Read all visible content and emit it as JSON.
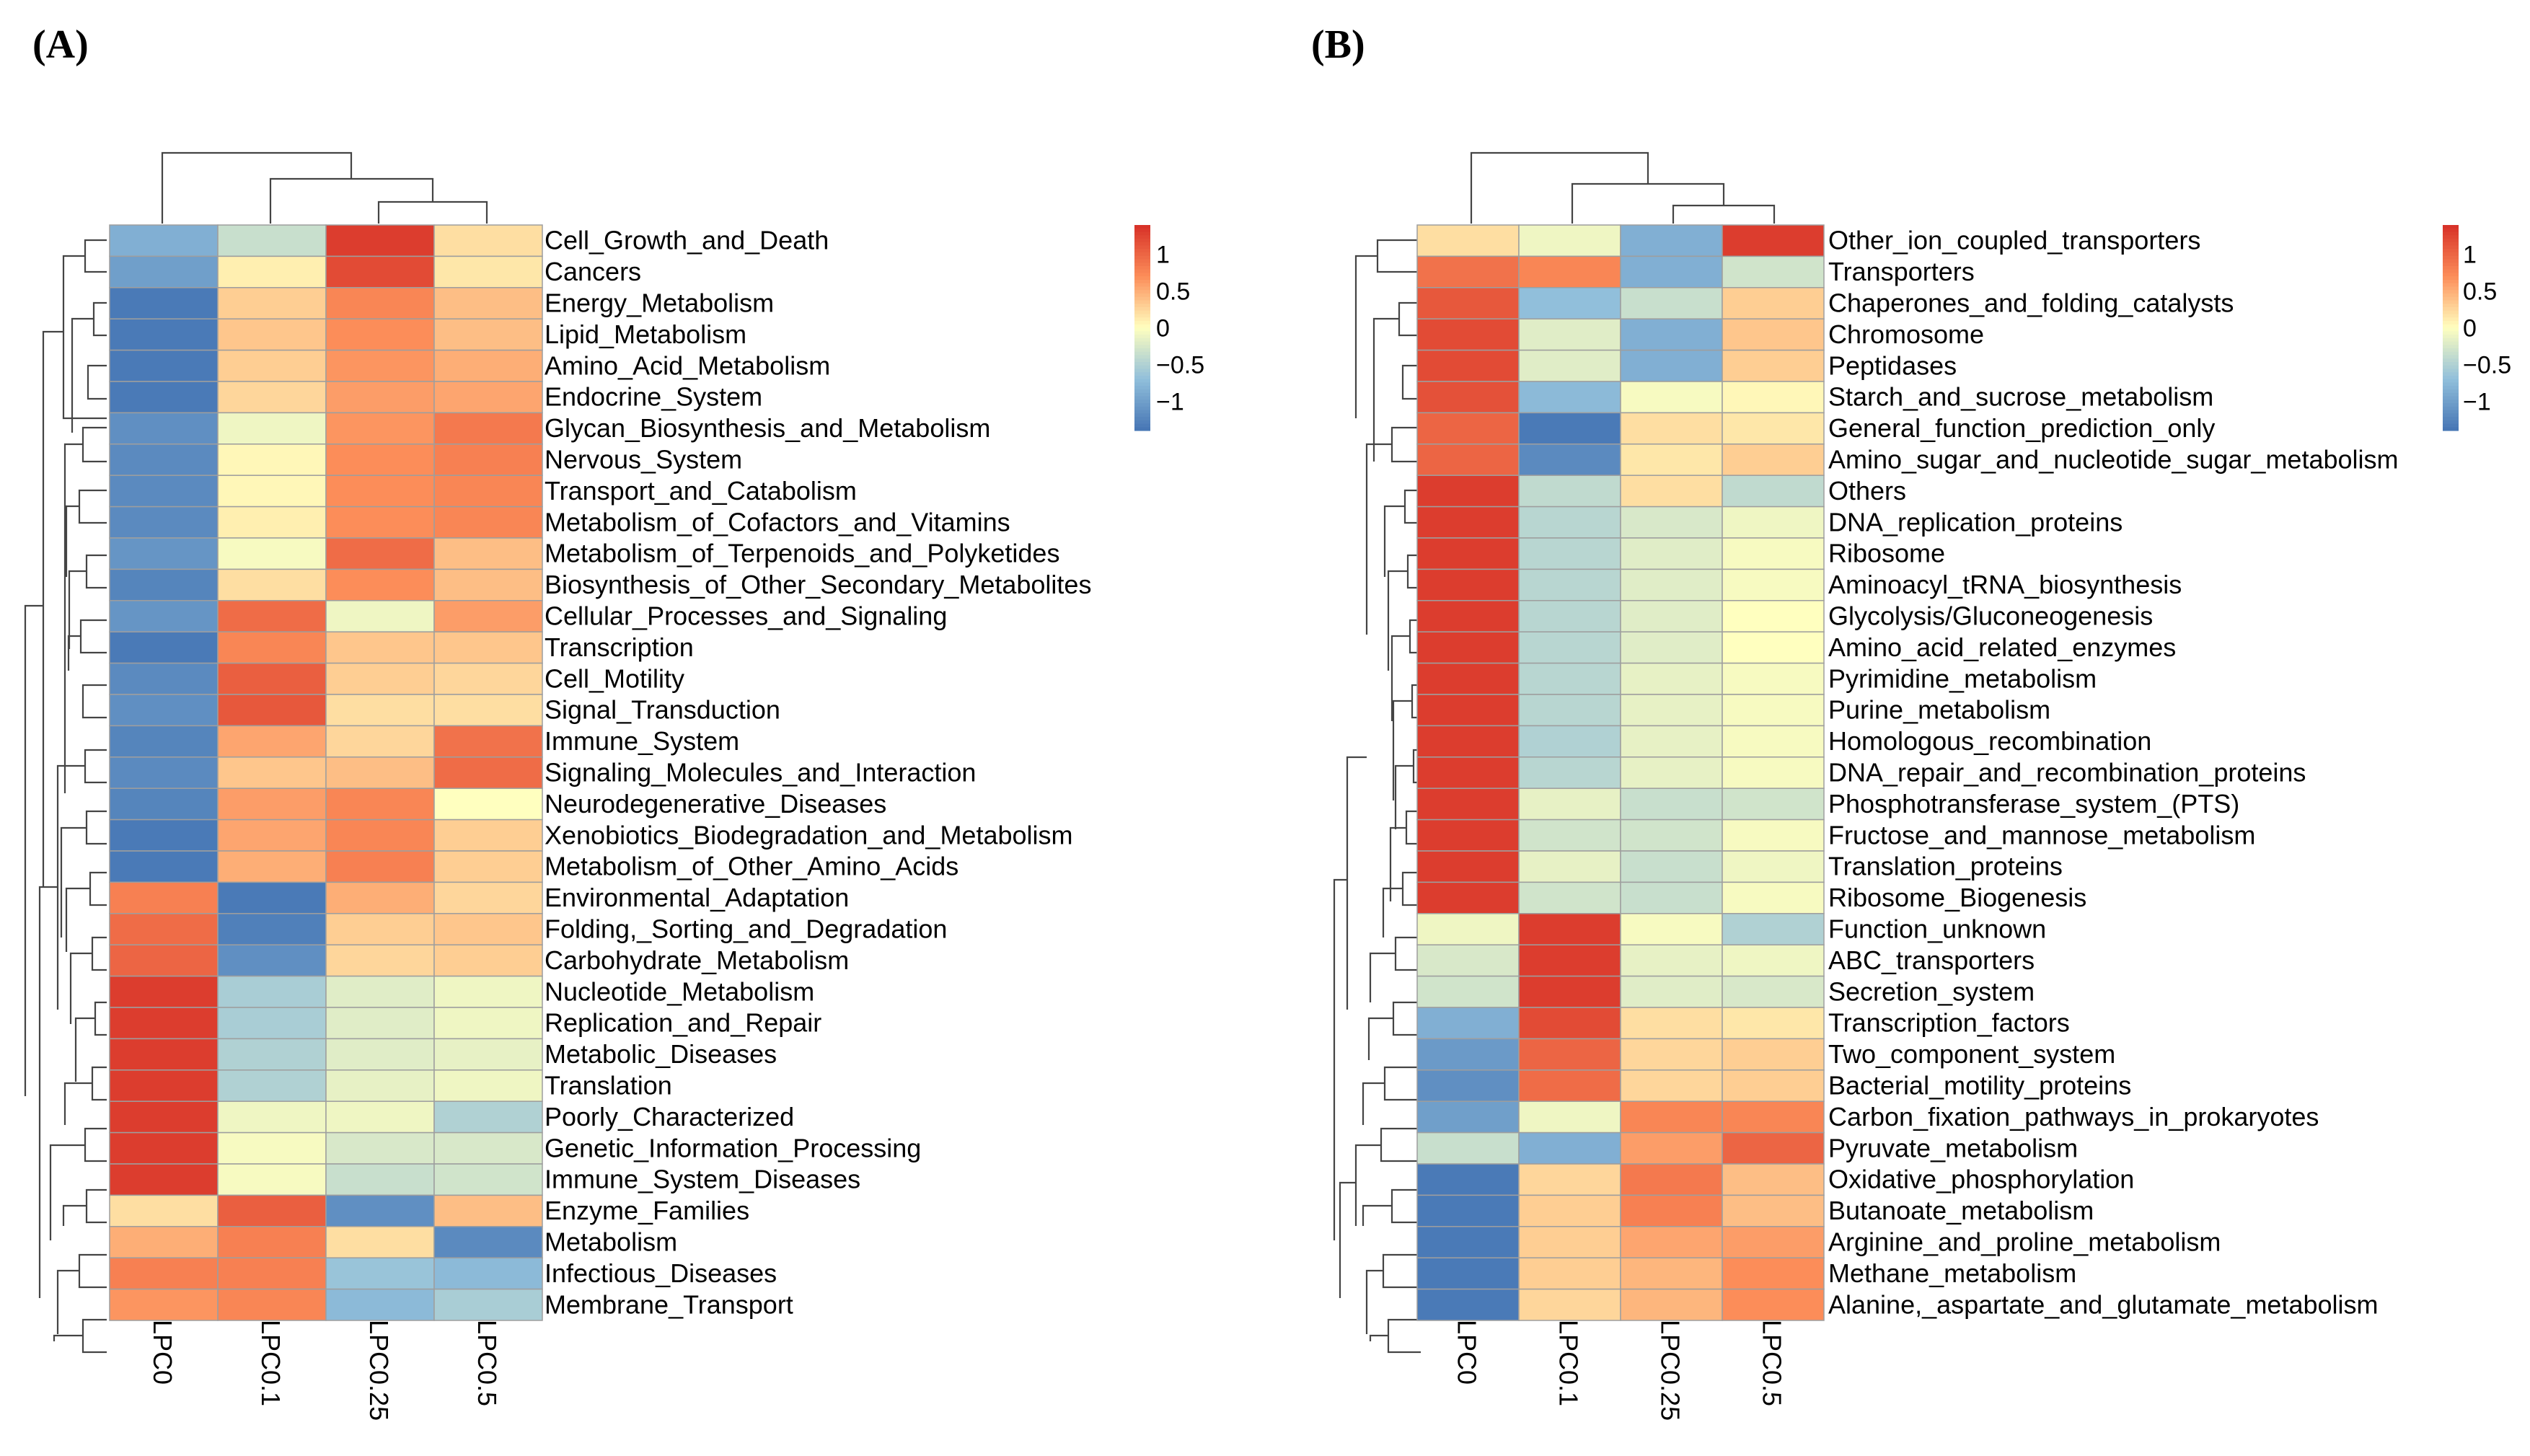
{
  "chart_data": [
    {
      "type": "heatmap",
      "panel_label": "(A)",
      "columns": [
        "LPC0",
        "LPC0.1",
        "LPC0.25",
        "LPC0.5"
      ],
      "rows": [
        "Cell_Growth_and_Death",
        "Cancers",
        "Energy_Metabolism",
        "Lipid_Metabolism",
        "Amino_Acid_Metabolism",
        "Endocrine_System",
        "Glycan_Biosynthesis_and_Metabolism",
        "Nervous_System",
        "Transport_and_Catabolism",
        "Metabolism_of_Cofactors_and_Vitamins",
        "Metabolism_of_Terpenoids_and_Polyketides",
        "Biosynthesis_of_Other_Secondary_Metabolites",
        "Cellular_Processes_and_Signaling",
        "Transcription",
        "Cell_Motility",
        "Signal_Transduction",
        "Immune_System",
        "Signaling_Molecules_and_Interaction",
        "Neurodegenerative_Diseases",
        "Xenobiotics_Biodegradation_and_Metabolism",
        "Metabolism_of_Other_Amino_Acids",
        "Environmental_Adaptation",
        "Folding,_Sorting_and_Degradation",
        "Carbohydrate_Metabolism",
        "Nucleotide_Metabolism",
        "Replication_and_Repair",
        "Metabolic_Diseases",
        "Translation",
        "Poorly_Characterized",
        "Genetic_Information_Processing",
        "Immune_System_Diseases",
        "Enzyme_Families",
        "Metabolism",
        "Infectious_Diseases",
        "Membrane_Transport"
      ],
      "values": [
        [
          -0.85,
          -0.35,
          1.3,
          0.2
        ],
        [
          -1.0,
          0.1,
          1.2,
          0.15
        ],
        [
          -1.35,
          0.3,
          0.75,
          0.4
        ],
        [
          -1.35,
          0.35,
          0.7,
          0.4
        ],
        [
          -1.35,
          0.3,
          0.65,
          0.5
        ],
        [
          -1.35,
          0.25,
          0.6,
          0.55
        ],
        [
          -1.15,
          -0.1,
          0.65,
          0.85
        ],
        [
          -1.2,
          0.05,
          0.7,
          0.8
        ],
        [
          -1.2,
          0.05,
          0.7,
          0.75
        ],
        [
          -1.2,
          0.1,
          0.7,
          0.75
        ],
        [
          -1.1,
          -0.05,
          0.95,
          0.4
        ],
        [
          -1.25,
          0.2,
          0.7,
          0.4
        ],
        [
          -1.1,
          0.95,
          -0.1,
          0.6
        ],
        [
          -1.35,
          0.75,
          0.35,
          0.35
        ],
        [
          -1.2,
          1.05,
          0.3,
          0.25
        ],
        [
          -1.15,
          1.1,
          0.2,
          0.2
        ],
        [
          -1.25,
          0.55,
          0.25,
          0.9
        ],
        [
          -1.2,
          0.35,
          0.4,
          0.95
        ],
        [
          -1.25,
          0.6,
          0.75,
          0.0
        ],
        [
          -1.35,
          0.55,
          0.75,
          0.3
        ],
        [
          -1.35,
          0.5,
          0.8,
          0.3
        ],
        [
          0.8,
          -1.35,
          0.5,
          0.25
        ],
        [
          0.95,
          -1.3,
          0.3,
          0.35
        ],
        [
          1.0,
          -1.15,
          0.25,
          0.3
        ],
        [
          1.3,
          -0.55,
          -0.2,
          -0.1
        ],
        [
          1.3,
          -0.55,
          -0.2,
          -0.1
        ],
        [
          1.3,
          -0.5,
          -0.2,
          -0.15
        ],
        [
          1.3,
          -0.5,
          -0.15,
          -0.1
        ],
        [
          1.3,
          -0.1,
          -0.1,
          -0.5
        ],
        [
          1.3,
          -0.05,
          -0.25,
          -0.25
        ],
        [
          1.3,
          -0.05,
          -0.35,
          -0.3
        ],
        [
          0.2,
          1.05,
          -1.15,
          0.4
        ],
        [
          0.5,
          0.8,
          0.2,
          -1.2
        ],
        [
          0.8,
          0.8,
          -0.65,
          -0.75
        ],
        [
          0.65,
          0.75,
          -0.75,
          -0.55
        ]
      ],
      "legend": {
        "ticks": [
          1,
          0.5,
          0,
          -0.5,
          -1
        ],
        "tick_labels": [
          "1",
          "0.5",
          "0",
          "−0.5",
          "−1"
        ]
      }
    },
    {
      "type": "heatmap",
      "panel_label": "(B)",
      "columns": [
        "LPC0",
        "LPC0.1",
        "LPC0.25",
        "LPC0.5"
      ],
      "rows": [
        "Other_ion_coupled_transporters",
        "Transporters",
        "Chaperones_and_folding_catalysts",
        "Chromosome",
        "Peptidases",
        "Starch_and_sucrose_metabolism",
        "General_function_prediction_only",
        "Amino_sugar_and_nucleotide_sugar_metabolism",
        "Others",
        "DNA_replication_proteins",
        "Ribosome",
        "Aminoacyl_tRNA_biosynthesis",
        "Glycolysis/Gluconeogenesis",
        "Amino_acid_related_enzymes",
        "Pyrimidine_metabolism",
        "Purine_metabolism",
        "Homologous_recombination",
        "DNA_repair_and_recombination_proteins",
        "Phosphotransferase_system_(PTS)",
        "Fructose_and_mannose_metabolism",
        "Translation_proteins",
        "Ribosome_Biogenesis",
        "Function_unknown",
        "ABC_transporters",
        "Secretion_system",
        "Transcription_factors",
        "Two_component_system",
        "Bacterial_motility_proteins",
        "Carbon_fixation_pathways_in_prokaryotes",
        "Pyruvate_metabolism",
        "Oxidative_phosphorylation",
        "Butanoate_metabolism",
        "Arginine_and_proline_metabolism",
        "Methane_metabolism",
        "Alanine,_aspartate_and_glutamate_metabolism"
      ],
      "values": [
        [
          0.2,
          -0.1,
          -0.85,
          1.3
        ],
        [
          0.9,
          0.75,
          -0.85,
          -0.3
        ],
        [
          1.1,
          -0.7,
          -0.35,
          0.3
        ],
        [
          1.2,
          -0.2,
          -0.85,
          0.35
        ],
        [
          1.2,
          -0.2,
          -0.85,
          0.3
        ],
        [
          1.15,
          -0.75,
          -0.05,
          0.05
        ],
        [
          1.0,
          -1.35,
          0.2,
          0.15
        ],
        [
          1.0,
          -1.2,
          0.15,
          0.3
        ],
        [
          1.3,
          -0.4,
          0.2,
          -0.4
        ],
        [
          1.3,
          -0.45,
          -0.25,
          -0.1
        ],
        [
          1.3,
          -0.45,
          -0.2,
          -0.05
        ],
        [
          1.3,
          -0.45,
          -0.2,
          -0.05
        ],
        [
          1.3,
          -0.45,
          -0.2,
          0.0
        ],
        [
          1.3,
          -0.45,
          -0.2,
          0.0
        ],
        [
          1.3,
          -0.45,
          -0.15,
          -0.05
        ],
        [
          1.3,
          -0.45,
          -0.15,
          -0.05
        ],
        [
          1.3,
          -0.5,
          -0.15,
          -0.05
        ],
        [
          1.3,
          -0.45,
          -0.15,
          -0.05
        ],
        [
          1.3,
          -0.15,
          -0.35,
          -0.3
        ],
        [
          1.3,
          -0.3,
          -0.3,
          -0.05
        ],
        [
          1.3,
          -0.15,
          -0.35,
          -0.1
        ],
        [
          1.3,
          -0.3,
          -0.35,
          -0.05
        ],
        [
          -0.1,
          1.3,
          -0.05,
          -0.5
        ],
        [
          -0.25,
          1.3,
          -0.15,
          -0.1
        ],
        [
          -0.3,
          1.3,
          -0.2,
          -0.25
        ],
        [
          -0.85,
          1.2,
          0.2,
          0.15
        ],
        [
          -1.05,
          1.0,
          0.25,
          0.3
        ],
        [
          -1.15,
          0.95,
          0.25,
          0.3
        ],
        [
          -1.0,
          -0.1,
          0.75,
          0.75
        ],
        [
          -0.35,
          -0.85,
          0.6,
          1.0
        ],
        [
          -1.35,
          0.25,
          0.85,
          0.4
        ],
        [
          -1.35,
          0.3,
          0.8,
          0.4
        ],
        [
          -1.35,
          0.3,
          0.55,
          0.6
        ],
        [
          -1.35,
          0.3,
          0.45,
          0.7
        ],
        [
          -1.35,
          0.25,
          0.45,
          0.7
        ]
      ],
      "legend": {
        "ticks": [
          1,
          0.5,
          0,
          -0.5,
          -1
        ],
        "tick_labels": [
          "1",
          "0.5",
          "0",
          "−0.5",
          "−1"
        ]
      }
    }
  ]
}
